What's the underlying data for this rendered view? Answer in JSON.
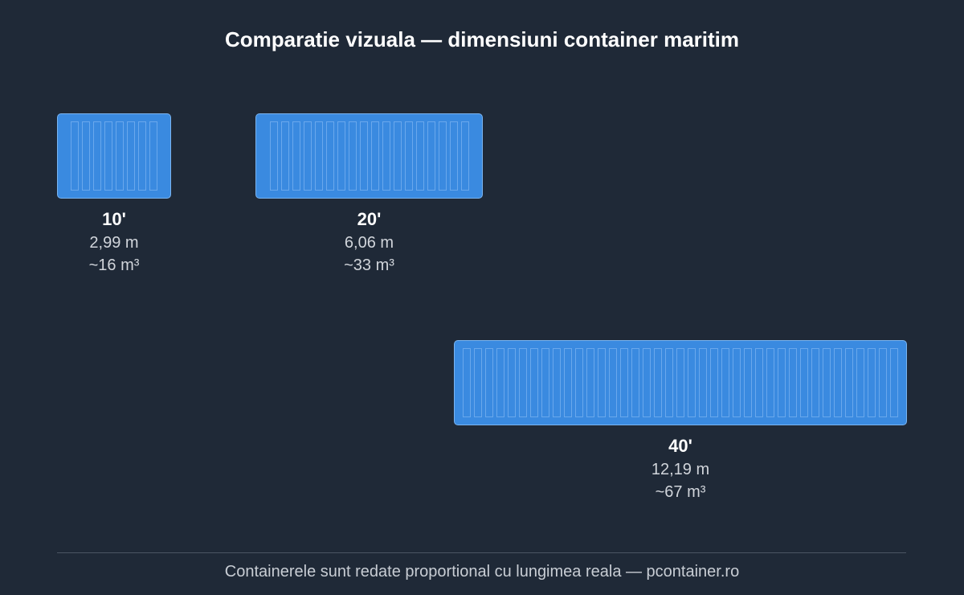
{
  "title": "Comparatie vizuala — dimensiuni container maritim",
  "containers": [
    {
      "name": "10'",
      "length": "2,99 m",
      "volume": "~16 m³",
      "length_m": 2.99
    },
    {
      "name": "20'",
      "length": "6,06 m",
      "volume": "~33 m³",
      "length_m": 6.06
    },
    {
      "name": "40'",
      "length": "12,19 m",
      "volume": "~67 m³",
      "length_m": 12.19
    }
  ],
  "footer": "Containerele sunt redate proportional cu lungimea reala — pcontainer.ro",
  "colors": {
    "background": "#1f2937",
    "container": "#3a8ae0",
    "container_border": "#7ab4f0"
  }
}
